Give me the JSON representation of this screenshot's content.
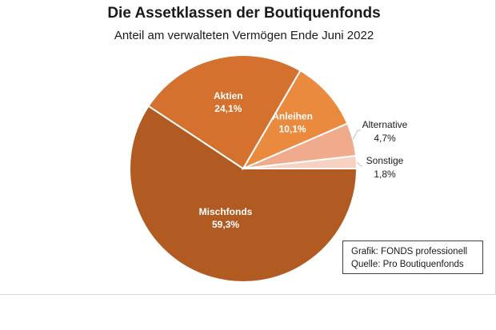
{
  "chart_data": {
    "type": "pie",
    "title": "Die Assetklassen der Boutiquenfonds",
    "subtitle": "Anteil am verwalteten Vermögen Ende Juni 2022",
    "slices": [
      {
        "name": "Mischfonds",
        "value": 59.3,
        "label": "59,3%",
        "color": "#b15a22",
        "placement": "inside"
      },
      {
        "name": "Aktien",
        "value": 24.1,
        "label": "24,1%",
        "color": "#d4712e",
        "placement": "inside"
      },
      {
        "name": "Anleihen",
        "value": 10.1,
        "label": "10,1%",
        "color": "#ea8a3e",
        "placement": "inside"
      },
      {
        "name": "Alternative",
        "value": 4.7,
        "label": "4,7%",
        "color": "#f0aa8c",
        "placement": "outside"
      },
      {
        "name": "Sonstige",
        "value": 1.8,
        "label": "1,8%",
        "color": "#f7d2c2",
        "placement": "outside"
      }
    ]
  },
  "source_box": {
    "line1": "Grafik: FONDS professionell",
    "line2": "Quelle: Pro Boutiquenfonds"
  }
}
